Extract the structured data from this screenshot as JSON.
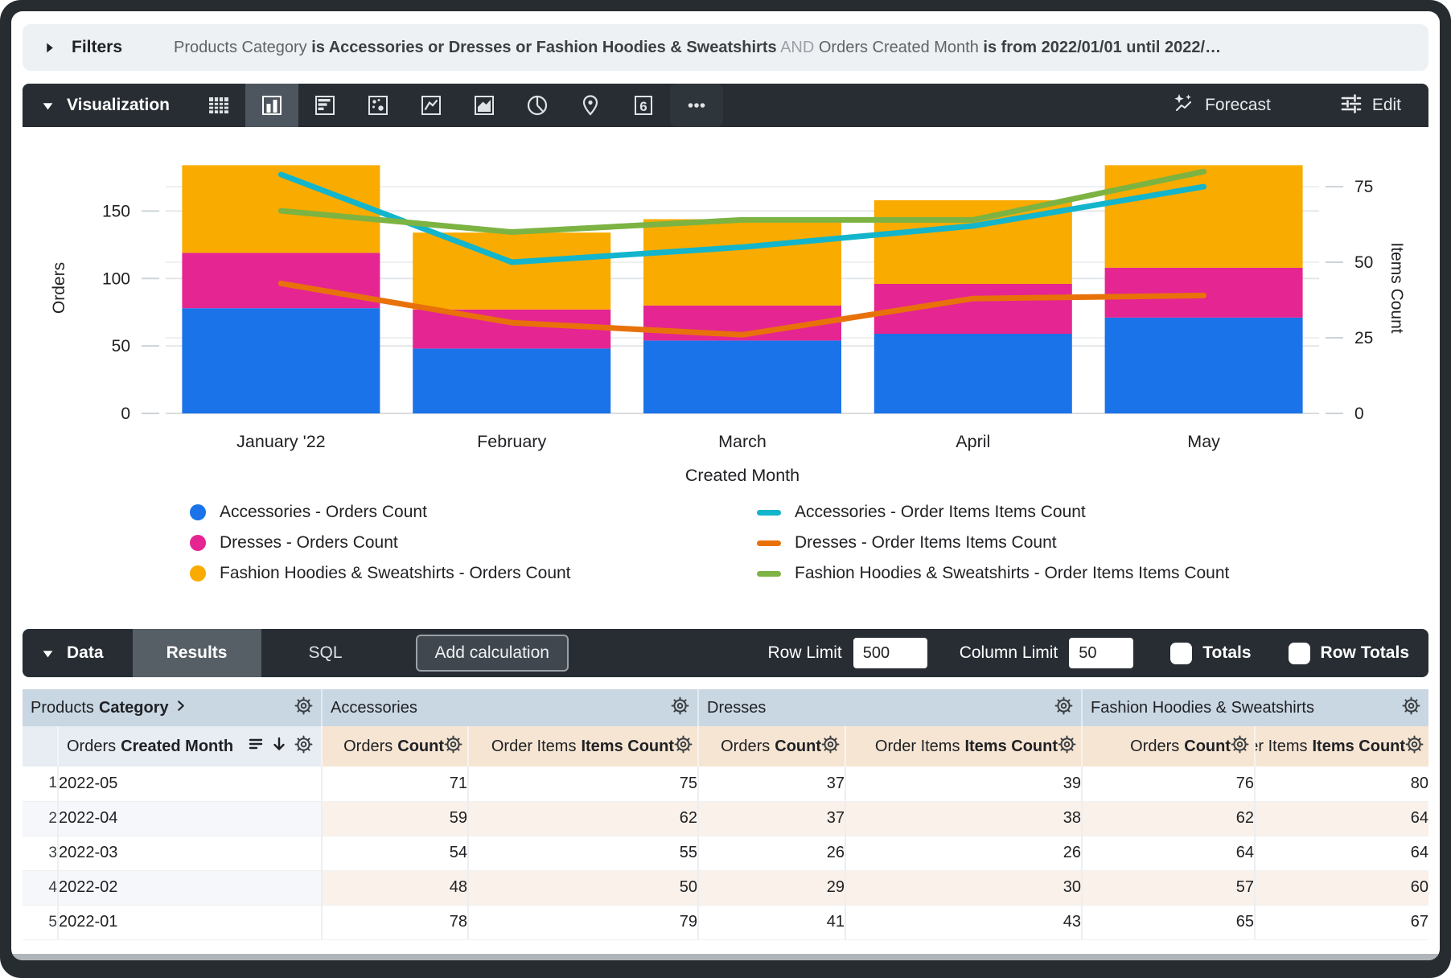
{
  "filters": {
    "label": "Filters",
    "segments": [
      {
        "text": "Products Category ",
        "style": "field"
      },
      {
        "text": "is Accessories or Dresses or Fashion Hoodies & Sweatshirts",
        "style": "value"
      },
      {
        "text": " AND ",
        "style": "conjunction"
      },
      {
        "text": "Orders Created Month ",
        "style": "field"
      },
      {
        "text": "is from 2022/01/01 until 2022/…",
        "style": "value"
      }
    ]
  },
  "viz_toolbar": {
    "label": "Visualization",
    "chart_type_icons": [
      {
        "name": "table-chart-icon",
        "selected": false
      },
      {
        "name": "column-chart-icon",
        "selected": true
      },
      {
        "name": "bar-chart-icon",
        "selected": false
      },
      {
        "name": "scatter-chart-icon",
        "selected": false
      },
      {
        "name": "line-chart-icon",
        "selected": false
      },
      {
        "name": "area-chart-icon",
        "selected": false
      },
      {
        "name": "pie-chart-icon",
        "selected": false
      },
      {
        "name": "map-chart-icon",
        "selected": false
      },
      {
        "name": "single-value-icon",
        "selected": false,
        "glyph": "6"
      },
      {
        "name": "more-options-icon",
        "selected": false
      }
    ],
    "forecast_label": "Forecast",
    "edit_label": "Edit"
  },
  "chart_data": {
    "type": "bar",
    "subtype": "stacked-column-with-lines-dual-axis",
    "categories": [
      "January '22",
      "February",
      "March",
      "April",
      "May"
    ],
    "bar_series": [
      {
        "name": "Accessories - Orders Count",
        "color": "#1A73E8",
        "values": [
          78,
          48,
          54,
          59,
          71
        ]
      },
      {
        "name": "Dresses - Orders Count",
        "color": "#E52592",
        "values": [
          41,
          29,
          26,
          37,
          37
        ]
      },
      {
        "name": "Fashion Hoodies & Sweatshirts - Orders Count",
        "color": "#F9AB00",
        "values": [
          65,
          57,
          64,
          62,
          76
        ]
      }
    ],
    "line_series": [
      {
        "name": "Accessories - Order Items Items Count",
        "color": "#12B5CB",
        "values": [
          79,
          50,
          55,
          62,
          75
        ]
      },
      {
        "name": "Dresses - Order Items Items Count",
        "color": "#E8710A",
        "values": [
          43,
          30,
          26,
          38,
          39
        ]
      },
      {
        "name": "Fashion Hoodies & Sweatshirts - Order Items Items Count",
        "color": "#7CB342",
        "values": [
          67,
          60,
          64,
          64,
          80
        ]
      }
    ],
    "xlabel": "Created Month",
    "y_left": {
      "label": "Orders",
      "ticks": [
        0,
        50,
        100,
        150
      ],
      "max": 186
    },
    "y_right": {
      "label": "Items Count",
      "ticks": [
        0,
        25,
        50,
        75
      ],
      "max": 83
    },
    "grid": true,
    "legend_position": "bottom"
  },
  "data_bar": {
    "label": "Data",
    "tabs": [
      {
        "label": "Results",
        "selected": true
      },
      {
        "label": "SQL",
        "selected": false
      }
    ],
    "add_calculation_label": "Add calculation",
    "row_limit": {
      "label": "Row Limit",
      "value": "500"
    },
    "column_limit": {
      "label": "Column Limit",
      "value": "50"
    },
    "totals": {
      "label": "Totals",
      "checked": false
    },
    "row_totals": {
      "label": "Row Totals",
      "checked": false
    }
  },
  "table": {
    "groups": [
      {
        "regular": "Products",
        "bold": "Category",
        "chevron": true
      },
      {
        "regular": "Accessories",
        "bold": "",
        "chevron": false
      },
      {
        "regular": "Dresses",
        "bold": "",
        "chevron": false
      },
      {
        "regular": "Fashion Hoodies & Sweatshirts",
        "bold": "",
        "chevron": false
      }
    ],
    "dimension_header": {
      "regular": "Orders",
      "bold": "Created Month"
    },
    "measure_headers": [
      {
        "regular": "Orders",
        "bold": "Count"
      },
      {
        "regular": "Order Items",
        "bold": "Items Count"
      }
    ],
    "rows": [
      {
        "index": "1",
        "dimension": "2022-05",
        "values": [
          "71",
          "75",
          "37",
          "39",
          "76",
          "80"
        ]
      },
      {
        "index": "2",
        "dimension": "2022-04",
        "values": [
          "59",
          "62",
          "37",
          "38",
          "62",
          "64"
        ]
      },
      {
        "index": "3",
        "dimension": "2022-03",
        "values": [
          "54",
          "55",
          "26",
          "26",
          "64",
          "64"
        ]
      },
      {
        "index": "4",
        "dimension": "2022-02",
        "values": [
          "48",
          "50",
          "29",
          "30",
          "57",
          "60"
        ]
      },
      {
        "index": "5",
        "dimension": "2022-01",
        "values": [
          "78",
          "79",
          "41",
          "43",
          "65",
          "67"
        ]
      }
    ],
    "colors": {
      "group_header_bg": "#c9d7e3",
      "dimension_header_bg": "#e7edf3",
      "measure_header_bg": "#f6e5d3",
      "alt_row_dimension_bg": "#f5f7fa",
      "alt_row_measure_bg": "#faf1ea"
    }
  },
  "colors": {
    "window_frame": "#272c31",
    "dark_toolbar": "#272d33",
    "selected_icon_bg": "#4d565e",
    "filters_bar_bg": "#eef1f4",
    "selected_tab_bg": "#565e66"
  }
}
